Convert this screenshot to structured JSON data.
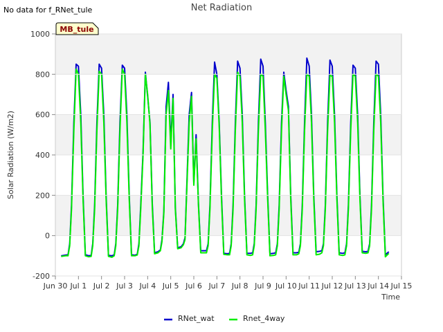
{
  "header": {
    "no_data_text": "No data for f_RNet_tule",
    "site_label": "MB_tule"
  },
  "colors": {
    "series_wat": "#0000cc",
    "series_4way": "#00ee00",
    "band": "#f2f2f2",
    "site_bg": "#ffffcc"
  },
  "chart_data": {
    "type": "line",
    "title": "Net Radiation",
    "xlabel": "Time",
    "ylabel": "Solar Radiation (W/m2)",
    "ylim": [
      -200,
      1000
    ],
    "yticks": [
      -200,
      0,
      200,
      400,
      600,
      800,
      1000
    ],
    "xlim": [
      0,
      15
    ],
    "xticks": [
      {
        "v": 0,
        "label": "Jun 30"
      },
      {
        "v": 1,
        "label": "Jul 1"
      },
      {
        "v": 2,
        "label": "Jul 2"
      },
      {
        "v": 3,
        "label": "Jul 3"
      },
      {
        "v": 4,
        "label": "Jul 4"
      },
      {
        "v": 5,
        "label": "Jul 5"
      },
      {
        "v": 6,
        "label": "Jul 6"
      },
      {
        "v": 7,
        "label": "Jul 7"
      },
      {
        "v": 8,
        "label": "Jul 8"
      },
      {
        "v": 9,
        "label": "Jul 9"
      },
      {
        "v": 10,
        "label": "Jul 10"
      },
      {
        "v": 11,
        "label": "Jul 11"
      },
      {
        "v": 12,
        "label": "Jul 12"
      },
      {
        "v": 13,
        "label": "Jul 13"
      },
      {
        "v": 14,
        "label": "Jul 14"
      },
      {
        "v": 15,
        "label": "Jul 15"
      }
    ],
    "legend_position": "bottom-center",
    "series": [
      {
        "name": "RNet_wat",
        "x": [
          0.25,
          0.45,
          0.55,
          0.62,
          0.7,
          0.8,
          0.9,
          1.0,
          1.1,
          1.2,
          1.3,
          1.45,
          1.55,
          1.62,
          1.7,
          1.8,
          1.9,
          2.0,
          2.1,
          2.2,
          2.3,
          2.45,
          2.55,
          2.62,
          2.7,
          2.8,
          2.9,
          3.0,
          3.1,
          3.2,
          3.3,
          3.45,
          3.55,
          3.62,
          3.7,
          3.8,
          3.9,
          4.0,
          4.1,
          4.2,
          4.3,
          4.45,
          4.55,
          4.62,
          4.7,
          4.8,
          4.9,
          5.0,
          5.1,
          5.2,
          5.3,
          5.45,
          5.55,
          5.62,
          5.7,
          5.8,
          5.9,
          6.0,
          6.1,
          6.2,
          6.3,
          6.45,
          6.55,
          6.62,
          6.7,
          6.8,
          6.9,
          7.0,
          7.1,
          7.2,
          7.3,
          7.45,
          7.55,
          7.62,
          7.7,
          7.8,
          7.9,
          8.0,
          8.1,
          8.2,
          8.3,
          8.45,
          8.55,
          8.62,
          8.7,
          8.8,
          8.9,
          9.0,
          9.1,
          9.2,
          9.3,
          9.45,
          9.55,
          9.62,
          9.7,
          9.8,
          9.9,
          10.0,
          10.1,
          10.2,
          10.3,
          10.45,
          10.55,
          10.62,
          10.7,
          10.8,
          10.9,
          11.0,
          11.1,
          11.2,
          11.3,
          11.45,
          11.55,
          11.62,
          11.7,
          11.8,
          11.9,
          12.0,
          12.1,
          12.2,
          12.3,
          12.45,
          12.55,
          12.62,
          12.7,
          12.8,
          12.9,
          13.0,
          13.1,
          13.2,
          13.3,
          13.45,
          13.55,
          13.62,
          13.7,
          13.8,
          13.9,
          14.0,
          14.1,
          14.2,
          14.3,
          14.45
        ],
        "y": [
          -100,
          -96,
          -95,
          -40,
          150,
          560,
          850,
          840,
          600,
          200,
          -95,
          -100,
          -98,
          -40,
          150,
          560,
          850,
          830,
          600,
          200,
          -98,
          -100,
          -95,
          -40,
          150,
          560,
          845,
          830,
          600,
          200,
          -95,
          -97,
          -92,
          -40,
          150,
          420,
          810,
          690,
          560,
          160,
          -85,
          -80,
          -70,
          -20,
          120,
          640,
          760,
          460,
          700,
          140,
          -60,
          -55,
          -40,
          -10,
          260,
          600,
          710,
          260,
          500,
          160,
          -75,
          -75,
          -75,
          -40,
          150,
          560,
          860,
          800,
          560,
          200,
          -88,
          -90,
          -88,
          -40,
          150,
          560,
          865,
          830,
          600,
          200,
          -88,
          -88,
          -85,
          -40,
          150,
          560,
          875,
          840,
          560,
          200,
          -90,
          -88,
          -85,
          -40,
          150,
          560,
          810,
          720,
          640,
          200,
          -85,
          -85,
          -82,
          -40,
          150,
          560,
          880,
          840,
          600,
          200,
          -80,
          -78,
          -75,
          -40,
          150,
          560,
          870,
          840,
          600,
          200,
          -85,
          -88,
          -85,
          -40,
          150,
          560,
          845,
          830,
          600,
          200,
          -78,
          -80,
          -78,
          -40,
          150,
          560,
          865,
          850,
          600,
          200,
          -95,
          -80
        ]
      },
      {
        "name": "Rnet_4way",
        "x": [
          0.25,
          0.45,
          0.55,
          0.62,
          0.7,
          0.8,
          0.9,
          1.0,
          1.1,
          1.2,
          1.3,
          1.45,
          1.55,
          1.62,
          1.7,
          1.8,
          1.9,
          2.0,
          2.1,
          2.2,
          2.3,
          2.45,
          2.55,
          2.62,
          2.7,
          2.8,
          2.9,
          3.0,
          3.1,
          3.2,
          3.3,
          3.45,
          3.55,
          3.62,
          3.7,
          3.8,
          3.9,
          4.0,
          4.1,
          4.2,
          4.3,
          4.45,
          4.55,
          4.62,
          4.7,
          4.8,
          4.9,
          5.0,
          5.1,
          5.2,
          5.3,
          5.45,
          5.55,
          5.62,
          5.7,
          5.8,
          5.9,
          6.0,
          6.1,
          6.2,
          6.3,
          6.45,
          6.55,
          6.62,
          6.7,
          6.8,
          6.9,
          7.0,
          7.1,
          7.2,
          7.3,
          7.45,
          7.55,
          7.62,
          7.7,
          7.8,
          7.9,
          8.0,
          8.1,
          8.2,
          8.3,
          8.45,
          8.55,
          8.62,
          8.7,
          8.8,
          8.9,
          9.0,
          9.1,
          9.2,
          9.3,
          9.45,
          9.55,
          9.62,
          9.7,
          9.8,
          9.9,
          10.0,
          10.1,
          10.2,
          10.3,
          10.45,
          10.55,
          10.62,
          10.7,
          10.8,
          10.9,
          11.0,
          11.1,
          11.2,
          11.3,
          11.45,
          11.55,
          11.62,
          11.7,
          11.8,
          11.9,
          12.0,
          12.1,
          12.2,
          12.3,
          12.45,
          12.55,
          12.62,
          12.7,
          12.8,
          12.9,
          13.0,
          13.1,
          13.2,
          13.3,
          13.45,
          13.55,
          13.62,
          13.7,
          13.8,
          13.9,
          14.0,
          14.1,
          14.2,
          14.3,
          14.45
        ],
        "y": [
          -103,
          -100,
          -100,
          -50,
          130,
          520,
          825,
          800,
          560,
          180,
          -100,
          -105,
          -103,
          -50,
          130,
          520,
          815,
          800,
          560,
          180,
          -103,
          -107,
          -100,
          -50,
          130,
          520,
          825,
          800,
          560,
          180,
          -100,
          -100,
          -96,
          -50,
          130,
          400,
          800,
          700,
          550,
          140,
          -90,
          -85,
          -75,
          -30,
          110,
          600,
          720,
          430,
          680,
          130,
          -65,
          -60,
          -45,
          -20,
          240,
          560,
          690,
          250,
          480,
          150,
          -85,
          -85,
          -85,
          -50,
          130,
          520,
          800,
          780,
          540,
          180,
          -93,
          -95,
          -95,
          -50,
          130,
          520,
          810,
          790,
          560,
          180,
          -95,
          -98,
          -95,
          -50,
          130,
          520,
          800,
          790,
          520,
          180,
          -100,
          -98,
          -95,
          -50,
          130,
          520,
          790,
          700,
          620,
          180,
          -95,
          -95,
          -90,
          -50,
          130,
          520,
          800,
          790,
          560,
          180,
          -95,
          -92,
          -85,
          -50,
          130,
          520,
          795,
          790,
          560,
          180,
          -95,
          -98,
          -95,
          -50,
          130,
          520,
          800,
          790,
          560,
          180,
          -85,
          -88,
          -85,
          -50,
          130,
          520,
          800,
          790,
          560,
          180,
          -105,
          -88
        ]
      }
    ]
  }
}
